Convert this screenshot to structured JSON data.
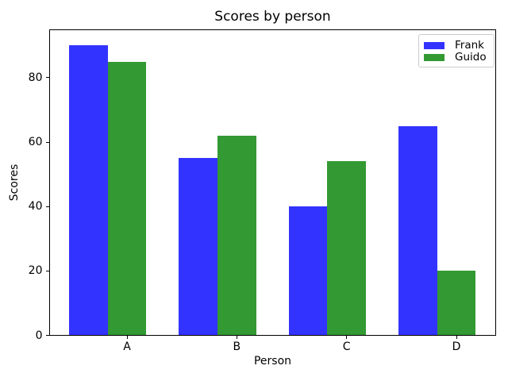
{
  "chart_data": {
    "type": "bar",
    "title": "Scores by person",
    "xlabel": "Person",
    "ylabel": "Scores",
    "categories": [
      "A",
      "B",
      "C",
      "D"
    ],
    "series": [
      {
        "name": "Frank",
        "color": "#3333ff",
        "values": [
          90,
          55,
          40,
          65
        ]
      },
      {
        "name": "Guido",
        "color": "#339933",
        "values": [
          85,
          62,
          54,
          20
        ]
      }
    ],
    "ylim": [
      0,
      95
    ],
    "yticks": [
      0,
      20,
      40,
      60,
      80
    ],
    "ytick_labels": [
      "0",
      "20",
      "40",
      "60",
      "80"
    ],
    "grid": false,
    "legend_position": "upper right",
    "background_color": "#ffffff",
    "spine_color": "#000000"
  }
}
